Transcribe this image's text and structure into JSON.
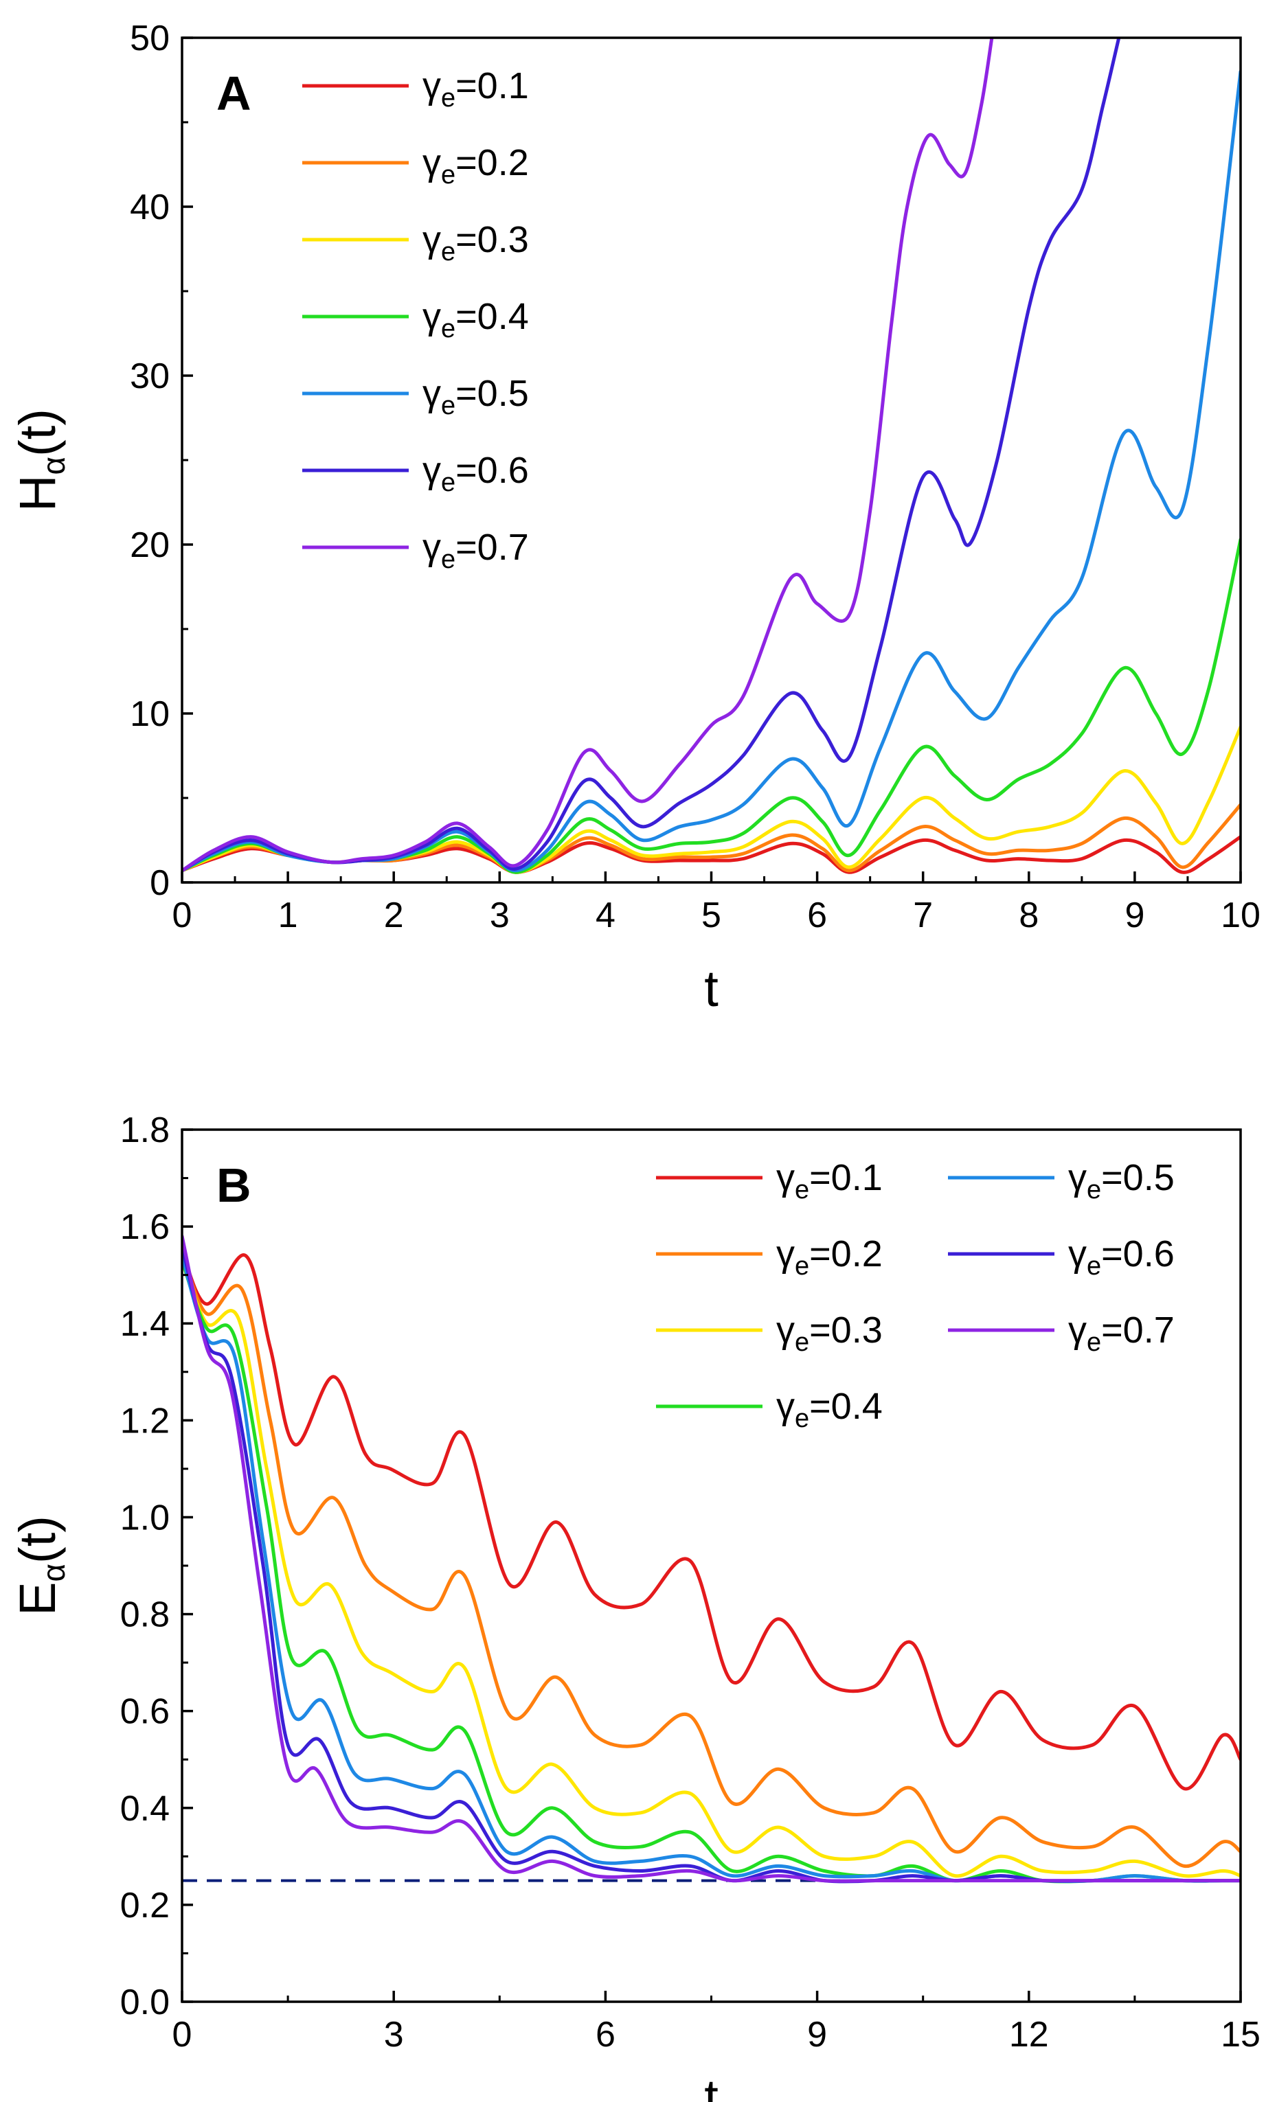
{
  "chart_data": [
    {
      "type": "line",
      "panel": "A",
      "title": "",
      "xlabel": "t",
      "ylabel_main": "H",
      "ylabel_sub": "α",
      "ylabel_tail": "(t)",
      "xlim": [
        0,
        10
      ],
      "ylim": [
        0,
        50
      ],
      "xticks": [
        "0",
        "1",
        "2",
        "3",
        "4",
        "5",
        "6",
        "7",
        "8",
        "9",
        "10"
      ],
      "yticks": [
        "0",
        "10",
        "20",
        "30",
        "40",
        "50"
      ],
      "legend_position": "top-left",
      "series": [
        {
          "name_prefix": "γ",
          "name_sub": "e",
          "name_value": "=0.1",
          "color": "#e41a1c",
          "x": [
            0,
            0.3,
            0.65,
            1,
            1.4,
            1.7,
            2,
            2.3,
            2.6,
            2.9,
            3.15,
            3.45,
            3.8,
            4.05,
            4.35,
            4.7,
            5.0,
            5.3,
            5.75,
            6.05,
            6.3,
            6.6,
            7.0,
            7.3,
            7.6,
            7.9,
            8.2,
            8.5,
            8.9,
            9.2,
            9.45,
            9.7,
            10
          ],
          "y": [
            0.7,
            1.4,
            2.0,
            1.6,
            1.2,
            1.3,
            1.3,
            1.6,
            2.0,
            1.4,
            0.6,
            1.2,
            2.3,
            2.0,
            1.3,
            1.3,
            1.3,
            1.4,
            2.3,
            1.7,
            0.6,
            1.5,
            2.5,
            1.9,
            1.3,
            1.4,
            1.3,
            1.4,
            2.5,
            1.8,
            0.6,
            1.4,
            2.7
          ]
        },
        {
          "name_prefix": "γ",
          "name_sub": "e",
          "name_value": "=0.2",
          "color": "#ff7f0e",
          "x": [
            0,
            0.3,
            0.65,
            1,
            1.4,
            1.7,
            2,
            2.3,
            2.6,
            2.9,
            3.15,
            3.45,
            3.8,
            4.05,
            4.35,
            4.7,
            5.0,
            5.3,
            5.75,
            6.05,
            6.3,
            6.6,
            7.0,
            7.3,
            7.6,
            7.9,
            8.2,
            8.5,
            8.9,
            9.2,
            9.45,
            9.7,
            10
          ],
          "y": [
            0.7,
            1.5,
            2.1,
            1.6,
            1.2,
            1.3,
            1.3,
            1.7,
            2.2,
            1.5,
            0.6,
            1.3,
            2.6,
            2.2,
            1.4,
            1.5,
            1.5,
            1.7,
            2.8,
            2.0,
            0.7,
            1.9,
            3.3,
            2.5,
            1.7,
            1.9,
            1.9,
            2.3,
            3.8,
            2.7,
            0.9,
            2.4,
            4.6
          ]
        },
        {
          "name_prefix": "γ",
          "name_sub": "e",
          "name_value": "=0.3",
          "color": "#ffe600",
          "x": [
            0,
            0.3,
            0.65,
            1,
            1.4,
            1.7,
            2,
            2.3,
            2.6,
            2.9,
            3.15,
            3.45,
            3.8,
            4.05,
            4.35,
            4.7,
            5.0,
            5.3,
            5.75,
            6.05,
            6.3,
            6.6,
            7.0,
            7.3,
            7.6,
            7.9,
            8.2,
            8.5,
            8.9,
            9.2,
            9.45,
            9.7,
            10
          ],
          "y": [
            0.7,
            1.5,
            2.2,
            1.6,
            1.2,
            1.3,
            1.4,
            1.8,
            2.4,
            1.6,
            0.6,
            1.4,
            3.0,
            2.5,
            1.6,
            1.7,
            1.8,
            2.1,
            3.6,
            2.6,
            0.9,
            2.6,
            5.0,
            3.8,
            2.6,
            3.0,
            3.3,
            4.1,
            6.6,
            4.7,
            2.3,
            4.8,
            9.2
          ]
        },
        {
          "name_prefix": "γ",
          "name_sub": "e",
          "name_value": "=0.4",
          "color": "#22dd22",
          "x": [
            0,
            0.3,
            0.65,
            1,
            1.4,
            1.7,
            2,
            2.3,
            2.6,
            2.9,
            3.15,
            3.45,
            3.8,
            4.05,
            4.35,
            4.7,
            5.0,
            5.3,
            5.75,
            6.05,
            6.3,
            6.6,
            7.0,
            7.3,
            7.6,
            7.9,
            8.2,
            8.5,
            8.9,
            9.2,
            9.45,
            9.7,
            10
          ],
          "y": [
            0.7,
            1.6,
            2.3,
            1.6,
            1.2,
            1.3,
            1.4,
            1.9,
            2.7,
            1.7,
            0.6,
            1.6,
            3.7,
            3.1,
            2.0,
            2.3,
            2.4,
            2.9,
            5.0,
            3.6,
            1.6,
            4.3,
            8.0,
            6.3,
            4.9,
            6.1,
            7.0,
            8.8,
            12.7,
            10.0,
            7.6,
            11.5,
            20.3
          ]
        },
        {
          "name_prefix": "γ",
          "name_sub": "e",
          "name_value": "=0.5",
          "color": "#1e88e5",
          "x": [
            0,
            0.3,
            0.65,
            1,
            1.4,
            1.7,
            2,
            2.3,
            2.6,
            2.9,
            3.15,
            3.45,
            3.8,
            4.05,
            4.35,
            4.7,
            5.0,
            5.3,
            5.75,
            6.05,
            6.3,
            6.6,
            7.0,
            7.3,
            7.6,
            7.9,
            8.2,
            8.5,
            8.9,
            9.2,
            9.45,
            9.7,
            10
          ],
          "y": [
            0.7,
            1.7,
            2.4,
            1.6,
            1.2,
            1.3,
            1.4,
            2.1,
            3.0,
            1.8,
            0.7,
            1.9,
            4.7,
            4.0,
            2.5,
            3.3,
            3.7,
            4.6,
            7.3,
            5.6,
            3.4,
            8.0,
            13.5,
            11.3,
            9.7,
            12.7,
            15.5,
            18.0,
            26.6,
            23.4,
            22.1,
            32.0,
            48.0
          ]
        },
        {
          "name_prefix": "γ",
          "name_sub": "e",
          "name_value": "=0.6",
          "color": "#3a1fd6",
          "x": [
            0,
            0.3,
            0.65,
            1,
            1.4,
            1.7,
            2,
            2.3,
            2.6,
            2.9,
            3.15,
            3.45,
            3.8,
            4.05,
            4.35,
            4.7,
            5.0,
            5.3,
            5.75,
            6.05,
            6.3,
            6.6,
            7.0,
            7.3,
            7.45,
            7.7,
            8.0,
            8.2,
            8.5,
            8.7,
            8.85
          ],
          "y": [
            0.7,
            1.8,
            2.5,
            1.7,
            1.2,
            1.3,
            1.5,
            2.2,
            3.2,
            1.9,
            0.8,
            2.4,
            6.0,
            5.0,
            3.3,
            4.7,
            5.8,
            7.5,
            11.2,
            9.0,
            7.4,
            14.0,
            24.0,
            21.5,
            20.1,
            25.0,
            34.0,
            38.0,
            41.0,
            46.0,
            50.0
          ]
        },
        {
          "name_prefix": "γ",
          "name_sub": "e",
          "name_value": "=0.7",
          "color": "#8e24e3",
          "x": [
            0,
            0.3,
            0.65,
            1,
            1.4,
            1.7,
            2,
            2.3,
            2.6,
            2.9,
            3.15,
            3.45,
            3.8,
            4.05,
            4.35,
            4.7,
            5.0,
            5.3,
            5.75,
            6.0,
            6.3,
            6.5,
            6.7,
            6.85,
            7.05,
            7.25,
            7.4,
            7.55,
            7.65
          ],
          "y": [
            0.7,
            1.9,
            2.7,
            1.8,
            1.2,
            1.4,
            1.6,
            2.4,
            3.5,
            2.1,
            1.0,
            3.1,
            7.7,
            6.6,
            4.8,
            7.0,
            9.3,
            11.0,
            18.0,
            16.5,
            15.8,
            22.0,
            33.0,
            40.0,
            44.2,
            42.5,
            42.0,
            46.0,
            50.0
          ]
        }
      ]
    },
    {
      "type": "line",
      "panel": "B",
      "title": "",
      "xlabel": "t",
      "ylabel_main": "E",
      "ylabel_sub": "α",
      "ylabel_tail": "(t)",
      "xlim": [
        0,
        15
      ],
      "ylim": [
        0.0,
        1.8
      ],
      "xticks": [
        "0",
        "3",
        "6",
        "9",
        "12",
        "15"
      ],
      "yticks": [
        "0.0",
        "0.2",
        "0.4",
        "0.6",
        "0.8",
        "1.0",
        "1.2",
        "1.4",
        "1.6",
        "1.8"
      ],
      "reference_line_y": 0.25,
      "reference_line_color": "#0b1f7a",
      "legend_position": "top-right",
      "series": [
        {
          "name_prefix": "γ",
          "name_sub": "e",
          "name_value": "=0.1",
          "color": "#e41a1c",
          "x": [
            0,
            0.35,
            0.9,
            1.25,
            1.6,
            2.15,
            2.6,
            2.95,
            3.55,
            4.0,
            4.65,
            5.3,
            5.85,
            6.5,
            7.2,
            7.8,
            8.45,
            9.1,
            9.8,
            10.35,
            10.95,
            11.6,
            12.2,
            12.9,
            13.5,
            14.2,
            14.75,
            15
          ],
          "y": [
            1.55,
            1.44,
            1.54,
            1.35,
            1.15,
            1.29,
            1.13,
            1.1,
            1.07,
            1.17,
            0.86,
            0.99,
            0.84,
            0.82,
            0.91,
            0.66,
            0.79,
            0.66,
            0.65,
            0.74,
            0.53,
            0.64,
            0.54,
            0.53,
            0.61,
            0.44,
            0.55,
            0.5
          ]
        },
        {
          "name_prefix": "γ",
          "name_sub": "e",
          "name_value": "=0.2",
          "color": "#ff7f0e",
          "x": [
            0,
            0.35,
            0.85,
            1.25,
            1.6,
            2.15,
            2.6,
            2.95,
            3.55,
            4.0,
            4.65,
            5.3,
            5.85,
            6.5,
            7.2,
            7.8,
            8.45,
            9.1,
            9.8,
            10.35,
            10.95,
            11.6,
            12.2,
            12.9,
            13.5,
            14.2,
            14.75,
            15
          ],
          "y": [
            1.55,
            1.42,
            1.47,
            1.2,
            0.97,
            1.04,
            0.9,
            0.85,
            0.81,
            0.88,
            0.59,
            0.67,
            0.55,
            0.53,
            0.59,
            0.41,
            0.48,
            0.4,
            0.39,
            0.44,
            0.31,
            0.38,
            0.33,
            0.32,
            0.36,
            0.28,
            0.33,
            0.31
          ]
        },
        {
          "name_prefix": "γ",
          "name_sub": "e",
          "name_value": "=0.3",
          "color": "#ffe600",
          "x": [
            0,
            0.35,
            0.8,
            1.2,
            1.6,
            2.1,
            2.55,
            2.95,
            3.55,
            4.0,
            4.6,
            5.25,
            5.85,
            6.5,
            7.2,
            7.8,
            8.45,
            9.1,
            9.8,
            10.35,
            10.95,
            11.6,
            12.2,
            12.9,
            13.5,
            14.2,
            14.75,
            15
          ],
          "y": [
            1.54,
            1.4,
            1.41,
            1.1,
            0.83,
            0.86,
            0.72,
            0.68,
            0.64,
            0.69,
            0.44,
            0.49,
            0.4,
            0.39,
            0.43,
            0.31,
            0.36,
            0.3,
            0.3,
            0.33,
            0.26,
            0.3,
            0.27,
            0.27,
            0.29,
            0.26,
            0.27,
            0.26
          ]
        },
        {
          "name_prefix": "γ",
          "name_sub": "e",
          "name_value": "=0.4",
          "color": "#22dd22",
          "x": [
            0,
            0.35,
            0.75,
            1.2,
            1.55,
            2.05,
            2.5,
            2.95,
            3.55,
            4.0,
            4.6,
            5.25,
            5.85,
            6.5,
            7.2,
            7.8,
            8.45,
            9.1,
            9.8,
            10.35,
            10.95,
            11.6,
            12.2,
            12.9,
            13.5,
            14.2,
            14.75,
            15
          ],
          "y": [
            1.53,
            1.39,
            1.37,
            1.02,
            0.71,
            0.72,
            0.56,
            0.55,
            0.52,
            0.56,
            0.35,
            0.4,
            0.33,
            0.32,
            0.35,
            0.27,
            0.3,
            0.27,
            0.26,
            0.28,
            0.25,
            0.27,
            0.25,
            0.25,
            0.26,
            0.25,
            0.25,
            0.25
          ]
        },
        {
          "name_prefix": "γ",
          "name_sub": "e",
          "name_value": "=0.5",
          "color": "#1e88e5",
          "x": [
            0,
            0.35,
            0.75,
            1.15,
            1.55,
            2.0,
            2.45,
            2.95,
            3.55,
            4.0,
            4.6,
            5.25,
            5.85,
            6.5,
            7.2,
            7.8,
            8.45,
            9.1,
            9.8,
            10.35,
            10.95,
            11.6,
            12.2,
            12.9,
            13.5,
            14.2,
            14.75,
            15
          ],
          "y": [
            1.54,
            1.37,
            1.33,
            0.95,
            0.6,
            0.62,
            0.47,
            0.46,
            0.44,
            0.47,
            0.31,
            0.34,
            0.29,
            0.29,
            0.3,
            0.26,
            0.28,
            0.26,
            0.26,
            0.27,
            0.25,
            0.26,
            0.25,
            0.25,
            0.26,
            0.25,
            0.25,
            0.25
          ]
        },
        {
          "name_prefix": "γ",
          "name_sub": "e",
          "name_value": "=0.6",
          "color": "#3a1fd6",
          "x": [
            0,
            0.35,
            0.7,
            1.15,
            1.5,
            1.95,
            2.4,
            2.95,
            3.55,
            4.0,
            4.6,
            5.25,
            5.85,
            6.5,
            7.2,
            7.8,
            8.45,
            9.1,
            9.8,
            10.35,
            10.95,
            11.6,
            12.2,
            12.9,
            13.5,
            14.2,
            14.75,
            15
          ],
          "y": [
            1.56,
            1.36,
            1.29,
            0.9,
            0.53,
            0.54,
            0.41,
            0.4,
            0.38,
            0.41,
            0.29,
            0.31,
            0.28,
            0.27,
            0.28,
            0.25,
            0.27,
            0.25,
            0.25,
            0.26,
            0.25,
            0.26,
            0.25,
            0.25,
            0.25,
            0.25,
            0.25,
            0.25
          ]
        },
        {
          "name_prefix": "γ",
          "name_sub": "e",
          "name_value": "=0.7",
          "color": "#8e24e3",
          "x": [
            0,
            0.35,
            0.7,
            1.1,
            1.5,
            1.9,
            2.35,
            2.95,
            3.55,
            4.0,
            4.6,
            5.25,
            5.85,
            6.5,
            7.2,
            7.8,
            8.45,
            9.1,
            9.8,
            10.35,
            10.95,
            11.6,
            12.2,
            12.9,
            13.5,
            14.2,
            14.75,
            15
          ],
          "y": [
            1.58,
            1.35,
            1.26,
            0.86,
            0.48,
            0.48,
            0.37,
            0.36,
            0.35,
            0.37,
            0.27,
            0.29,
            0.26,
            0.26,
            0.27,
            0.25,
            0.26,
            0.25,
            0.25,
            0.25,
            0.25,
            0.25,
            0.25,
            0.25,
            0.25,
            0.25,
            0.25,
            0.25
          ]
        }
      ]
    }
  ]
}
